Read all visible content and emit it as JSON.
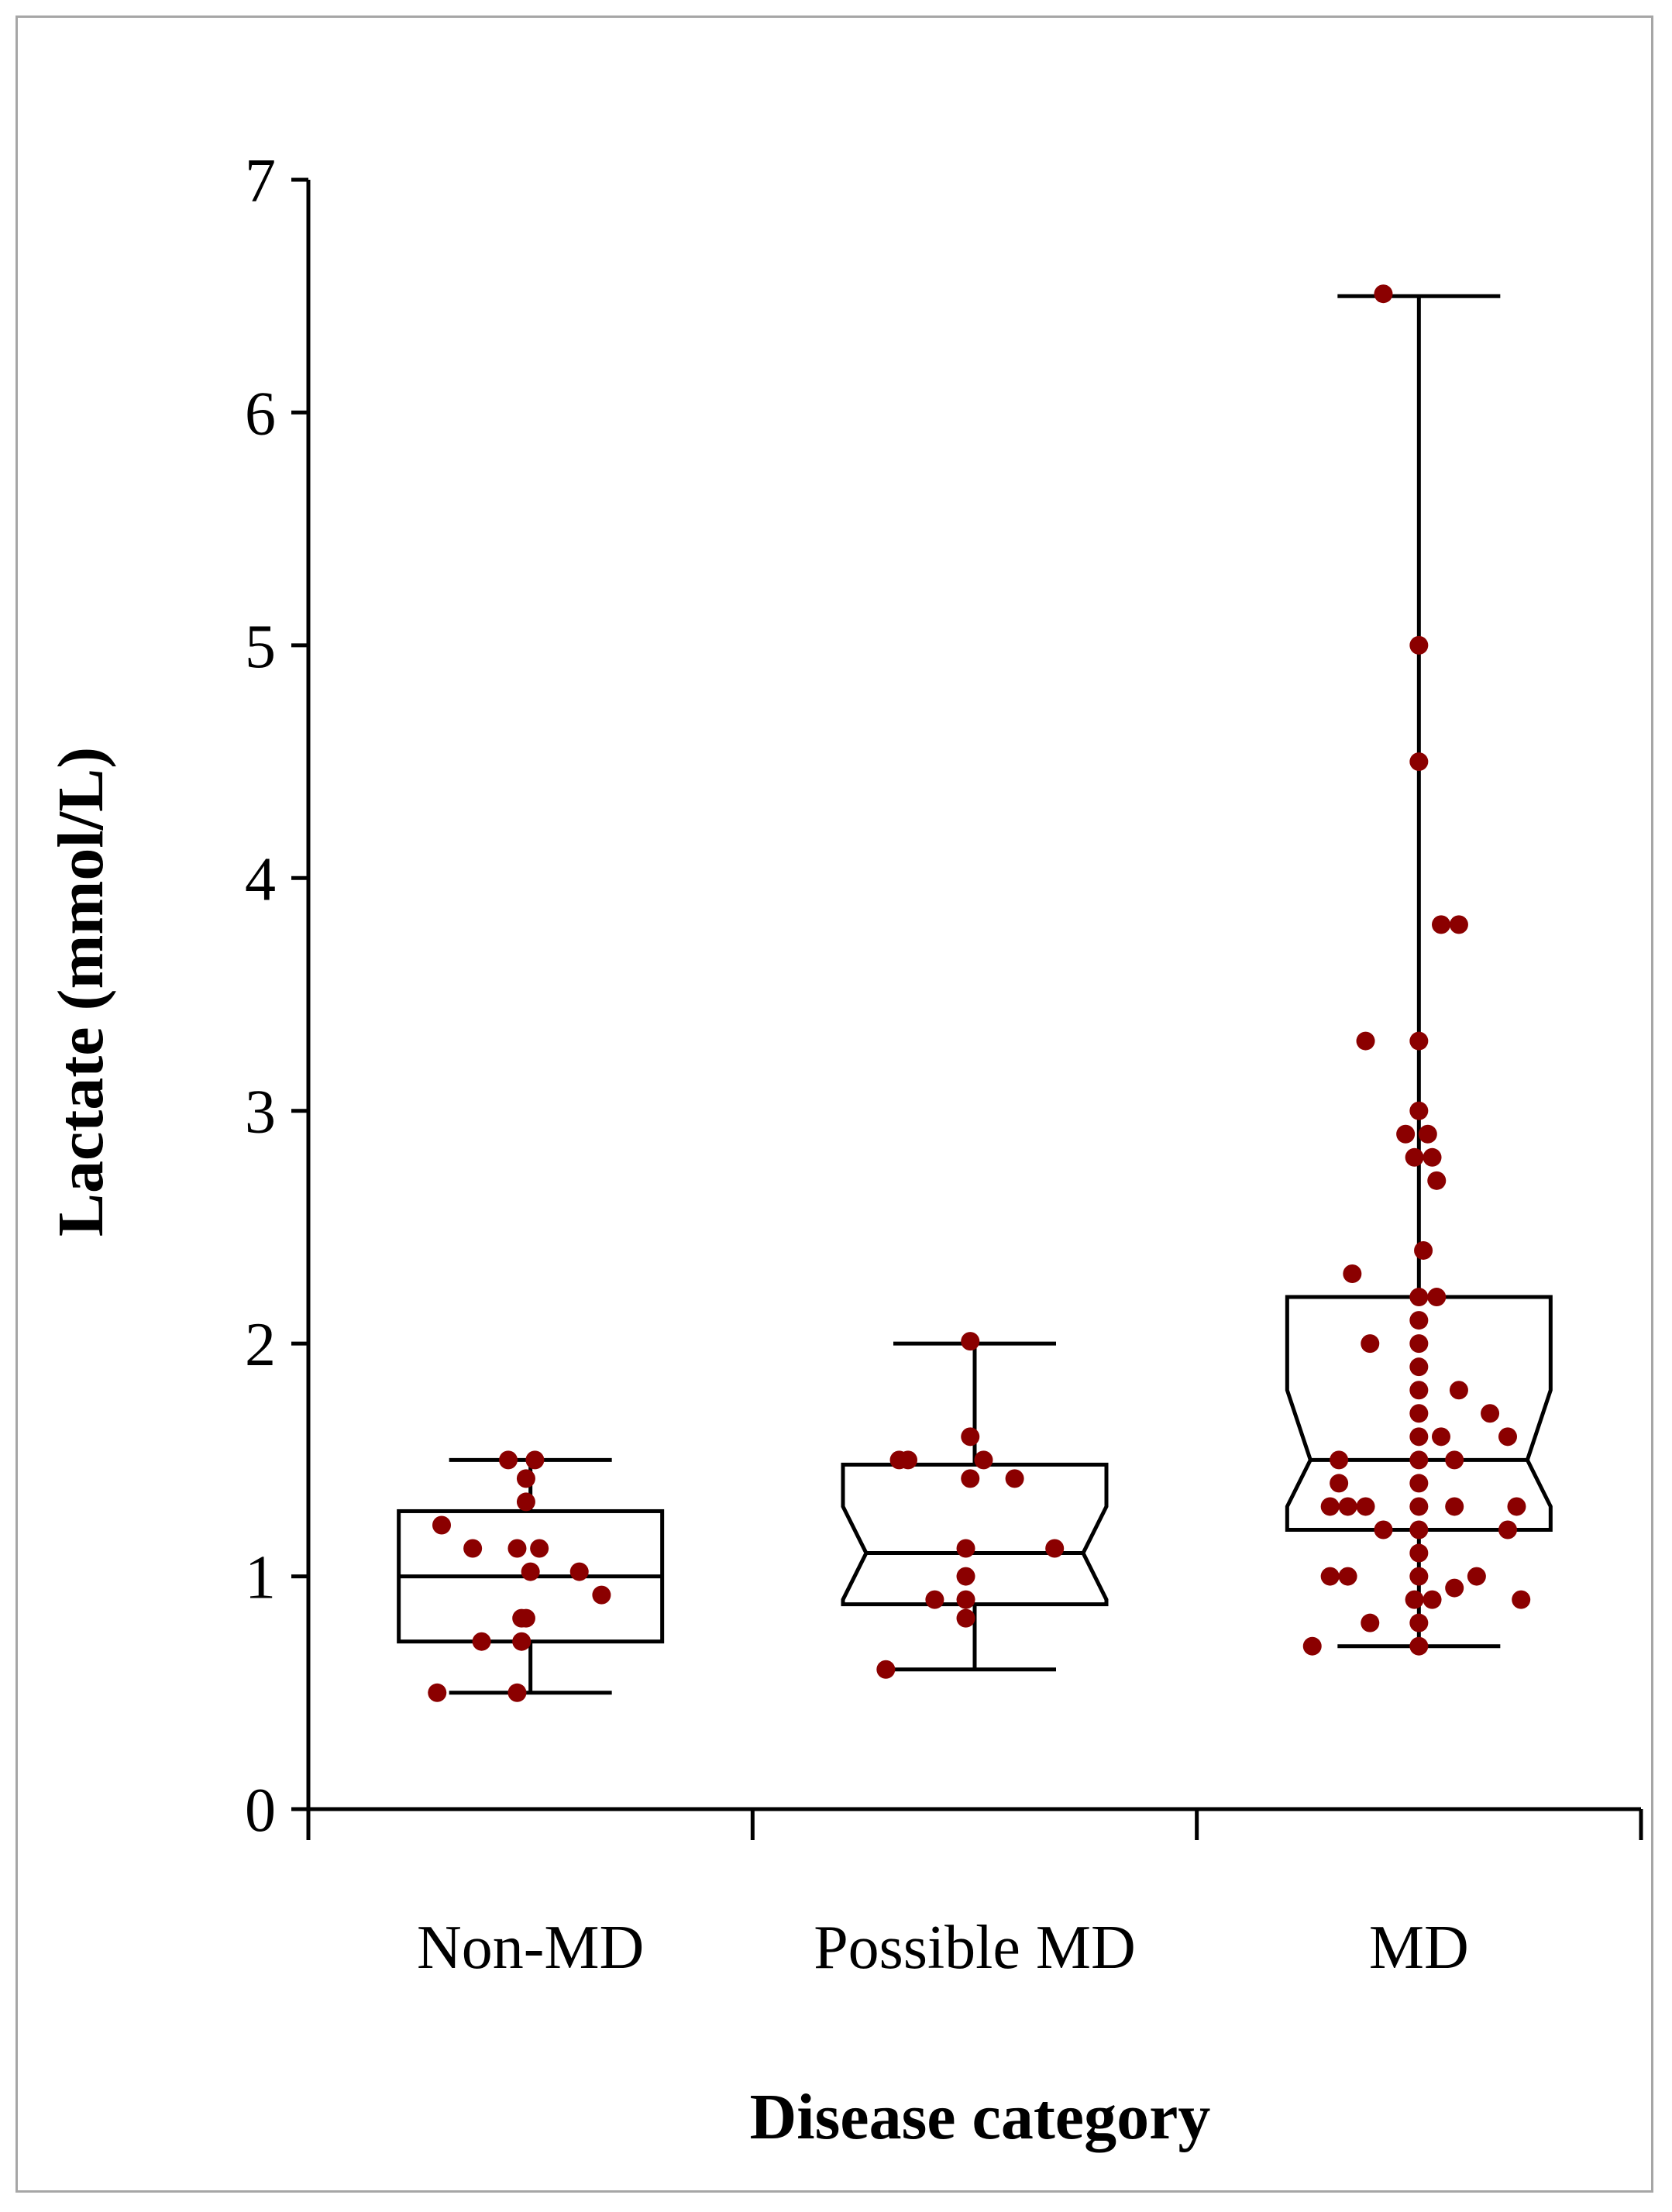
{
  "chart_data": {
    "type": "box",
    "title": "",
    "xlabel": "Disease category",
    "ylabel": "Lactate (mmol/L)",
    "ylim": [
      0,
      7
    ],
    "yticks": [
      0,
      1,
      2,
      3,
      4,
      5,
      6,
      7
    ],
    "point_color": "#8b0000",
    "categories": [
      "Non-MD",
      "Possible MD",
      "MD"
    ],
    "boxes": [
      {
        "category": "Non-MD",
        "notched": false,
        "whisker_low": 0.5,
        "q1": 0.72,
        "median": 1.0,
        "q3": 1.28,
        "whisker_high": 1.5,
        "points": [
          1.5,
          1.5,
          1.42,
          1.32,
          1.22,
          1.12,
          1.12,
          1.12,
          1.02,
          1.02,
          0.92,
          0.82,
          0.82,
          0.72,
          0.72,
          0.5,
          0.5
        ],
        "offsets": [
          -0.05,
          0.01,
          -0.01,
          -0.01,
          -0.2,
          -0.13,
          -0.03,
          0.02,
          0.0,
          0.11,
          0.16,
          -0.02,
          -0.01,
          -0.11,
          -0.02,
          -0.21,
          -0.03
        ]
      },
      {
        "category": "Possible MD",
        "notched": true,
        "whisker_low": 0.6,
        "q1": 0.88,
        "median": 1.1,
        "q3": 1.48,
        "whisker_high": 2.0,
        "notch_low": 0.9,
        "notch_high": 1.3,
        "points": [
          2.01,
          1.6,
          1.5,
          1.5,
          1.5,
          1.42,
          1.42,
          1.12,
          1.12,
          1.0,
          0.9,
          0.9,
          0.82,
          0.6
        ],
        "offsets": [
          -0.01,
          -0.01,
          -0.17,
          -0.15,
          0.02,
          -0.01,
          0.09,
          -0.02,
          0.18,
          -0.02,
          -0.09,
          -0.02,
          -0.02,
          -0.2
        ]
      },
      {
        "category": "MD",
        "notched": true,
        "whisker_low": 0.7,
        "q1": 1.2,
        "median": 1.5,
        "q3": 2.2,
        "whisker_high": 6.5,
        "notch_low": 1.3,
        "notch_high": 1.8,
        "points": [
          6.51,
          5.0,
          4.5,
          3.8,
          3.8,
          3.3,
          3.3,
          3.0,
          2.9,
          2.9,
          2.8,
          2.8,
          2.7,
          2.4,
          2.3,
          2.2,
          2.2,
          2.1,
          2.0,
          2.0,
          1.9,
          1.8,
          1.8,
          1.7,
          1.7,
          1.6,
          1.6,
          1.6,
          1.5,
          1.5,
          1.5,
          1.4,
          1.4,
          1.3,
          1.3,
          1.3,
          1.3,
          1.3,
          1.3,
          1.2,
          1.2,
          1.2,
          1.1,
          1.0,
          1.0,
          1.0,
          1.0,
          0.95,
          0.9,
          0.9,
          0.9,
          0.8,
          0.8,
          0.7,
          0.7
        ],
        "offsets": [
          -0.08,
          0.0,
          0.0,
          0.05,
          0.09,
          -0.12,
          0.0,
          0.0,
          -0.03,
          0.02,
          -0.01,
          0.03,
          0.04,
          0.01,
          -0.15,
          0.0,
          0.04,
          0.0,
          -0.11,
          0.0,
          0.0,
          0.0,
          0.09,
          0.0,
          0.16,
          0.0,
          0.05,
          0.2,
          -0.18,
          0.0,
          0.08,
          -0.18,
          0.0,
          -0.2,
          -0.16,
          -0.12,
          0.0,
          0.08,
          0.22,
          -0.08,
          0.0,
          0.2,
          0.0,
          -0.2,
          -0.16,
          0.0,
          0.13,
          0.08,
          -0.01,
          0.03,
          0.23,
          -0.11,
          0.0,
          -0.24,
          0.0
        ]
      }
    ]
  }
}
